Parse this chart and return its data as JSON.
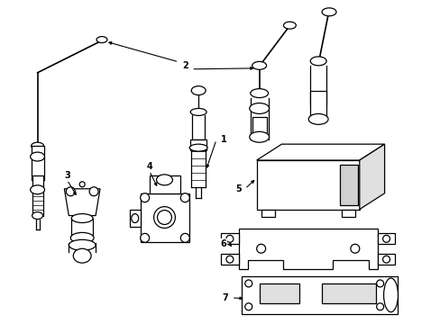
{
  "background_color": "#ffffff",
  "line_color": "#000000",
  "fig_width": 4.89,
  "fig_height": 3.6,
  "dpi": 100,
  "parts": {
    "label1_text": "1",
    "label2_text": "2",
    "label3_text": "3",
    "label4_text": "4",
    "label5_text": "5",
    "label6_text": "6",
    "label7_text": "7"
  }
}
